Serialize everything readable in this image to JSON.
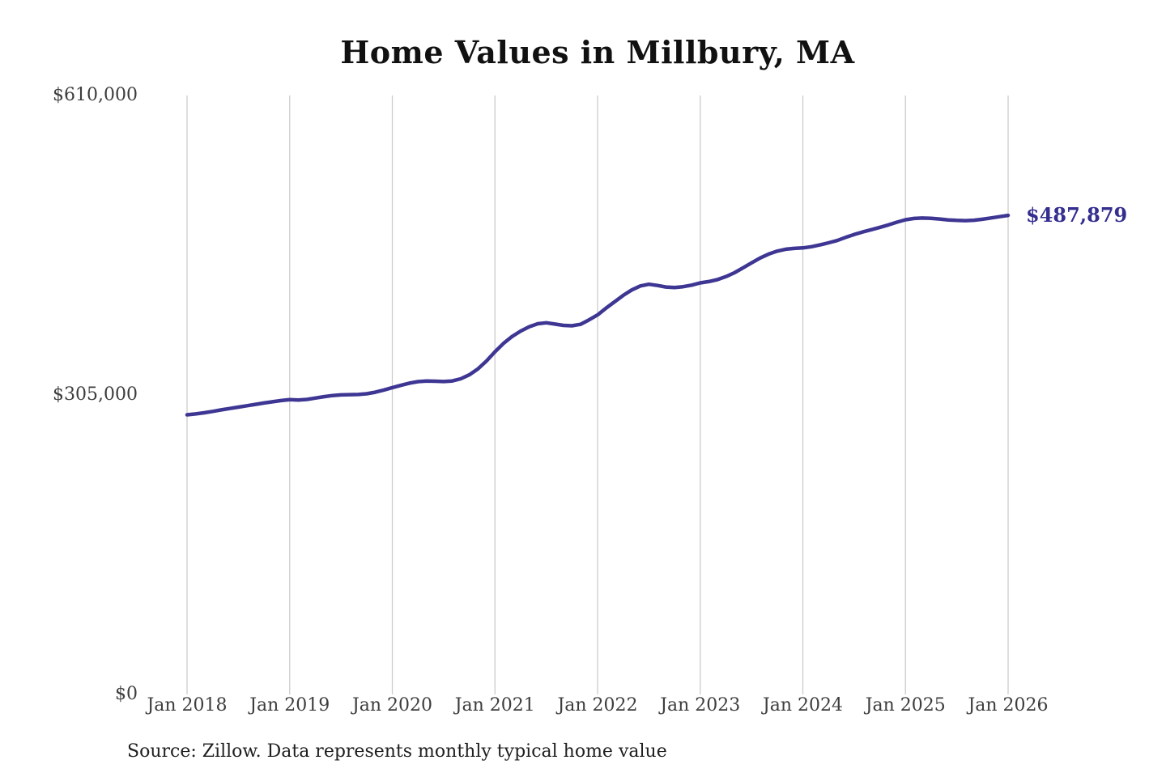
{
  "title": "Home Values in Millbury, MA",
  "annotation": {
    "label": "$487,879",
    "color": "#342e8f"
  },
  "footer": {
    "source": "Source: Zillow. Data represents monthly typical home value"
  },
  "chart_data": {
    "type": "line",
    "title": "Home Values in Millbury, MA",
    "xlabel": "",
    "ylabel": "",
    "ylim": [
      0,
      610000
    ],
    "grid": "vertical-only",
    "gridline_color": "#cccccc",
    "background_color": "#ffffff",
    "x_tick_labels": [
      "Jan 2018",
      "Jan 2019",
      "Jan 2020",
      "Jan 2021",
      "Jan 2022",
      "Jan 2023",
      "Jan 2024",
      "Jan 2025",
      "Jan 2026"
    ],
    "y_ticks": [
      {
        "value": 0,
        "label": "$0"
      },
      {
        "value": 305000,
        "label": "$305,000"
      },
      {
        "value": 610000,
        "label": "$610,000"
      }
    ],
    "frequency": "monthly",
    "x_start": "Jan 2018",
    "x_end": "Jan 2026",
    "end_value": 487879,
    "end_label": "$487,879",
    "series": [
      {
        "name": "Typical home value",
        "color": "#3e3693",
        "values": [
          284800,
          285700,
          286900,
          288300,
          289800,
          291200,
          292600,
          294000,
          295400,
          296800,
          298100,
          299300,
          300200,
          299800,
          300500,
          301900,
          303300,
          304400,
          305100,
          305300,
          305500,
          306200,
          307800,
          310000,
          312500,
          314800,
          317000,
          318600,
          319200,
          319000,
          318700,
          319300,
          321500,
          325500,
          331500,
          339500,
          349000,
          357500,
          364500,
          370000,
          374500,
          377500,
          378500,
          377200,
          375900,
          375500,
          377000,
          381500,
          386500,
          393500,
          400000,
          406500,
          412000,
          416000,
          417800,
          416500,
          415000,
          414500,
          415300,
          416900,
          419200,
          420500,
          422500,
          425500,
          429500,
          434500,
          439500,
          444500,
          448500,
          451500,
          453500,
          454300,
          454800,
          456000,
          457800,
          460000,
          462300,
          465500,
          468500,
          471000,
          473300,
          475700,
          478200,
          481000,
          483500,
          484800,
          485200,
          484900,
          484200,
          483300,
          482800,
          482600,
          483000,
          484000,
          485300,
          486600,
          487879
        ]
      }
    ]
  }
}
